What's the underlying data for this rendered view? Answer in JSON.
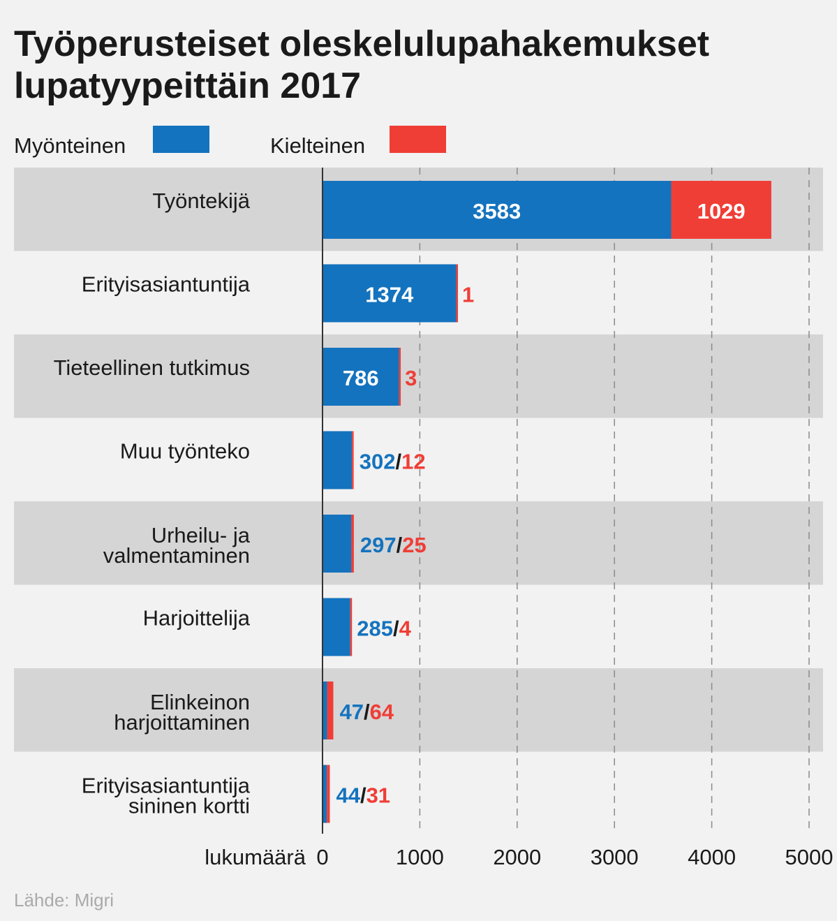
{
  "chart_data": {
    "type": "bar",
    "orientation": "horizontal",
    "stacked": true,
    "title_line1": "Työperusteiset oleskelulupahakemukset",
    "title_line2": "lupatyypeittäin 2017",
    "categories": [
      [
        "Työntekijä"
      ],
      [
        "Erityisasiantuntija"
      ],
      [
        "Tieteellinen tutkimus"
      ],
      [
        "Muu työnteko"
      ],
      [
        "Urheilu- ja",
        "valmentaminen"
      ],
      [
        "Harjoittelija"
      ],
      [
        "Elinkeinon",
        "harjoittaminen"
      ],
      [
        "Erityisasiantuntija",
        "sininen kortti"
      ]
    ],
    "series": [
      {
        "name": "Myönteinen",
        "color": "#1473be",
        "values": [
          3583,
          1374,
          786,
          302,
          297,
          285,
          47,
          44
        ]
      },
      {
        "name": "Kielteinen",
        "color": "#ef3e36",
        "values": [
          1029,
          1,
          3,
          12,
          25,
          4,
          64,
          31
        ]
      }
    ],
    "label_inside": [
      true,
      true,
      true,
      false,
      false,
      false,
      false,
      false
    ],
    "xlabel": "lukumäärä",
    "xlim": [
      0,
      5000
    ],
    "xticks": [
      "0",
      "1000",
      "2000",
      "3000",
      "4000",
      "5000"
    ],
    "grid": true,
    "legend_position": "top",
    "source": "Lähde: Migri"
  }
}
